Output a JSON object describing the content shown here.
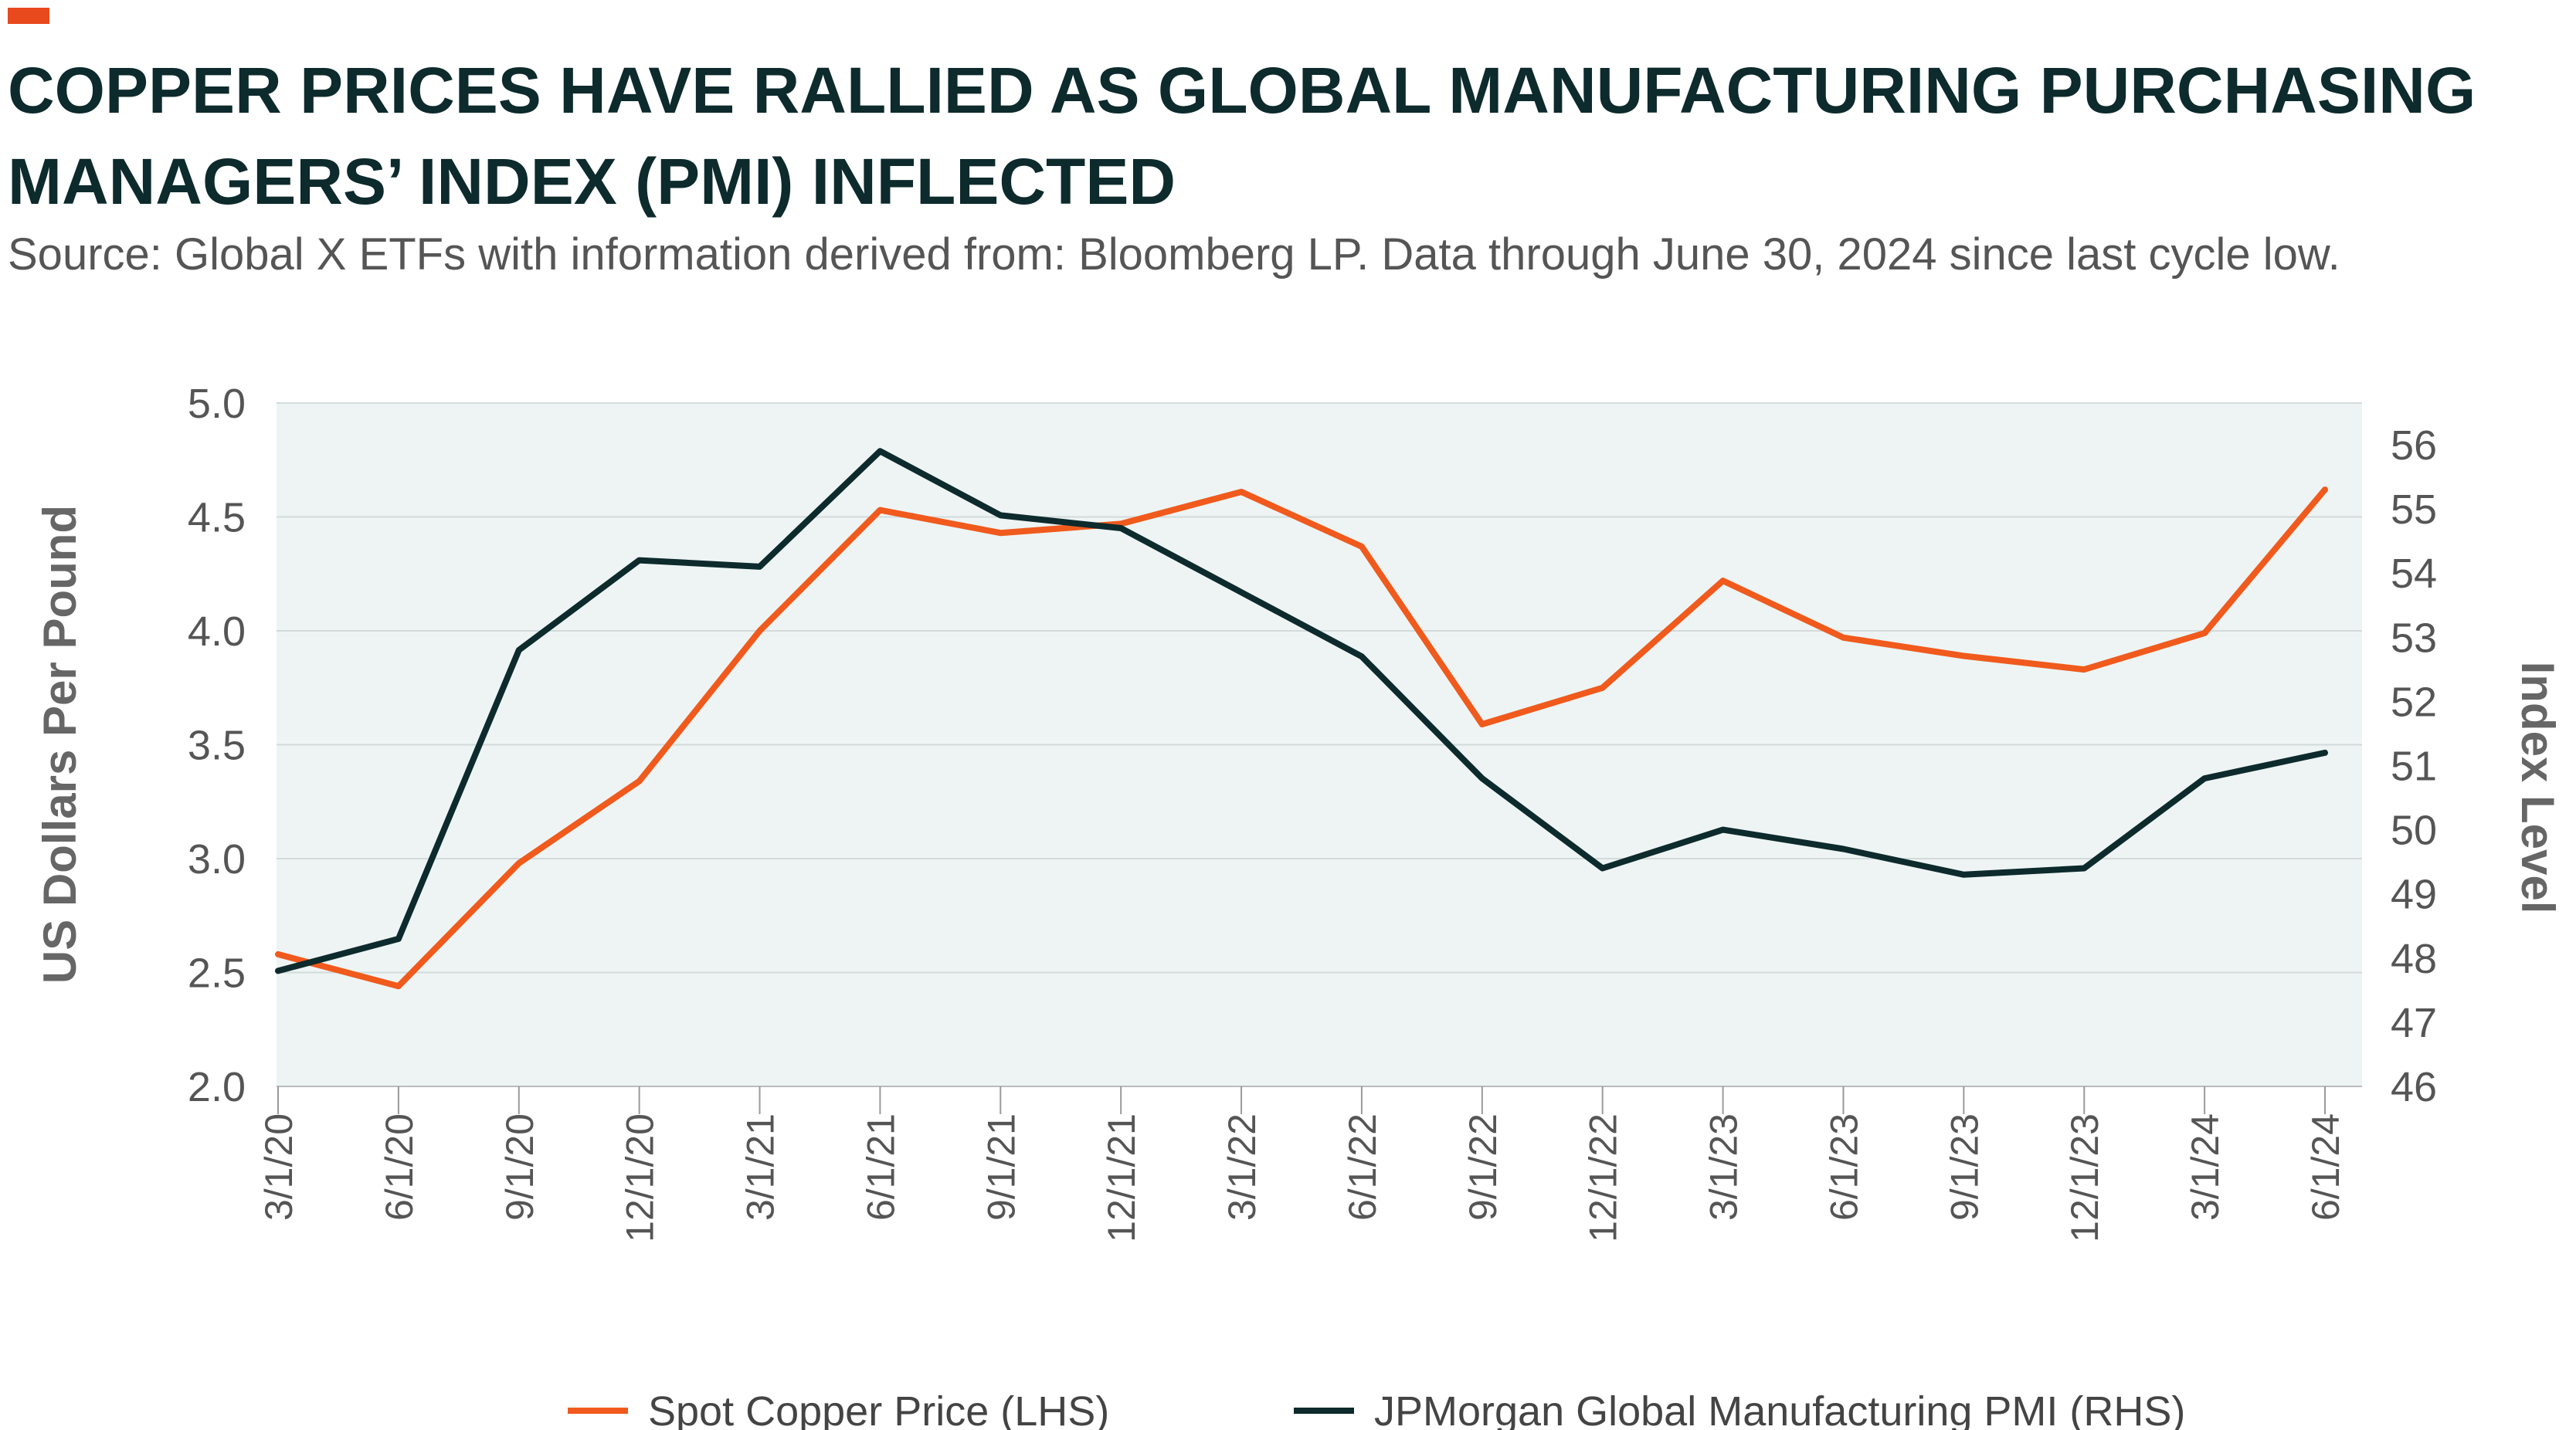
{
  "header": {
    "title": "COPPER PRICES HAVE RALLIED AS GLOBAL MANUFACTURING PURCHASING MANAGERS’ INDEX (PMI) INFLECTED",
    "subtitle": "Source: Global X ETFs with information derived from: Bloomberg LP. Data through June 30, 2024 since last cycle low."
  },
  "colors": {
    "accent": "#e8491d",
    "copper_line": "#f05a1c",
    "pmi_line": "#0d2a2c",
    "plot_bg": "#eef4f4",
    "grid": "#d3dada"
  },
  "chart_data": {
    "type": "line",
    "title": "COPPER PRICES HAVE RALLIED AS GLOBAL MANUFACTURING PURCHASING MANAGERS’ INDEX (PMI) INFLECTED",
    "categories": [
      "3/1/20",
      "6/1/20",
      "9/1/20",
      "12/1/20",
      "3/1/21",
      "6/1/21",
      "9/1/21",
      "12/1/21",
      "3/1/22",
      "6/1/22",
      "9/1/22",
      "12/1/22",
      "3/1/23",
      "6/1/23",
      "9/1/23",
      "12/1/23",
      "3/1/24",
      "6/1/24"
    ],
    "ylabel": "US Dollars Per Pound",
    "y2label": "Index Level",
    "ylim": [
      2.0,
      5.0
    ],
    "y_ticks": [
      "2.0",
      "2.5",
      "3.0",
      "3.5",
      "4.0",
      "4.5",
      "5.0"
    ],
    "y2lim": [
      46,
      56.65
    ],
    "y2_ticks": [
      "46",
      "47",
      "48",
      "49",
      "50",
      "51",
      "52",
      "53",
      "54",
      "55",
      "56"
    ],
    "series": [
      {
        "name": "Spot Copper Price (LHS)",
        "axis": "left",
        "values": [
          2.58,
          2.44,
          2.98,
          3.34,
          4.0,
          4.53,
          4.43,
          4.47,
          4.61,
          4.37,
          3.59,
          3.75,
          4.22,
          3.97,
          3.89,
          3.83,
          3.99,
          4.62
        ]
      },
      {
        "name": "JPMorgan Global Manufacturing PMI (RHS)",
        "axis": "right",
        "values": [
          47.8,
          48.3,
          52.8,
          54.2,
          54.1,
          55.9,
          54.9,
          54.7,
          53.7,
          52.7,
          50.8,
          49.4,
          50.0,
          49.7,
          49.3,
          49.4,
          50.8,
          51.2
        ]
      }
    ],
    "legend": [
      "Spot Copper Price (LHS)",
      "JPMorgan Global Manufacturing PMI (RHS)"
    ],
    "legend_position": "bottom",
    "grid": true
  }
}
